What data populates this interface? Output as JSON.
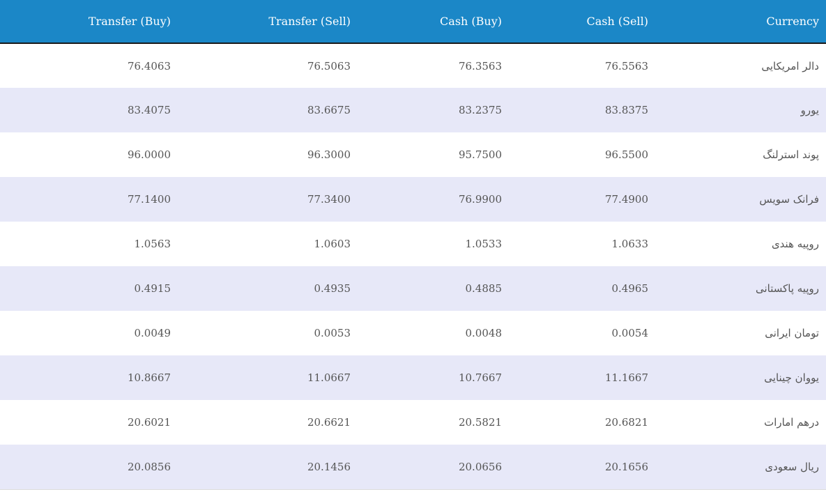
{
  "table": {
    "headers": {
      "transfer_buy": "Transfer (Buy)",
      "transfer_sell": "Transfer (Sell)",
      "cash_buy": "Cash (Buy)",
      "cash_sell": "Cash (Sell)",
      "currency": "Currency"
    },
    "rows": [
      {
        "transfer_buy": "76.4063",
        "transfer_sell": "76.5063",
        "cash_buy": "76.3563",
        "cash_sell": "76.5563",
        "currency": "دالر امریکایی"
      },
      {
        "transfer_buy": "83.4075",
        "transfer_sell": "83.6675",
        "cash_buy": "83.2375",
        "cash_sell": "83.8375",
        "currency": "یورو"
      },
      {
        "transfer_buy": "96.0000",
        "transfer_sell": "96.3000",
        "cash_buy": "95.7500",
        "cash_sell": "96.5500",
        "currency": "پوند استرلنگ"
      },
      {
        "transfer_buy": "77.1400",
        "transfer_sell": "77.3400",
        "cash_buy": "76.9900",
        "cash_sell": "77.4900",
        "currency": "فرانک سویس"
      },
      {
        "transfer_buy": "1.0563",
        "transfer_sell": "1.0603",
        "cash_buy": "1.0533",
        "cash_sell": "1.0633",
        "currency": "روپیه هندی"
      },
      {
        "transfer_buy": "0.4915",
        "transfer_sell": "0.4935",
        "cash_buy": "0.4885",
        "cash_sell": "0.4965",
        "currency": "روپیه پاکستانی"
      },
      {
        "transfer_buy": "0.0049",
        "transfer_sell": "0.0053",
        "cash_buy": "0.0048",
        "cash_sell": "0.0054",
        "currency": "تومان ایرانی"
      },
      {
        "transfer_buy": "10.8667",
        "transfer_sell": "11.0667",
        "cash_buy": "10.7667",
        "cash_sell": "11.1667",
        "currency": "یووان چینایی"
      },
      {
        "transfer_buy": "20.6021",
        "transfer_sell": "20.6621",
        "cash_buy": "20.5821",
        "cash_sell": "20.6821",
        "currency": "درهم امارات"
      },
      {
        "transfer_buy": "20.0856",
        "transfer_sell": "20.1456",
        "cash_buy": "20.0656",
        "cash_sell": "20.1656",
        "currency": "ریال سعودی"
      }
    ]
  },
  "colors": {
    "header_background": "#1b87c7",
    "header_text": "#ffffff",
    "stripe_row": "#e7e8f8",
    "plain_row": "#ffffff"
  }
}
